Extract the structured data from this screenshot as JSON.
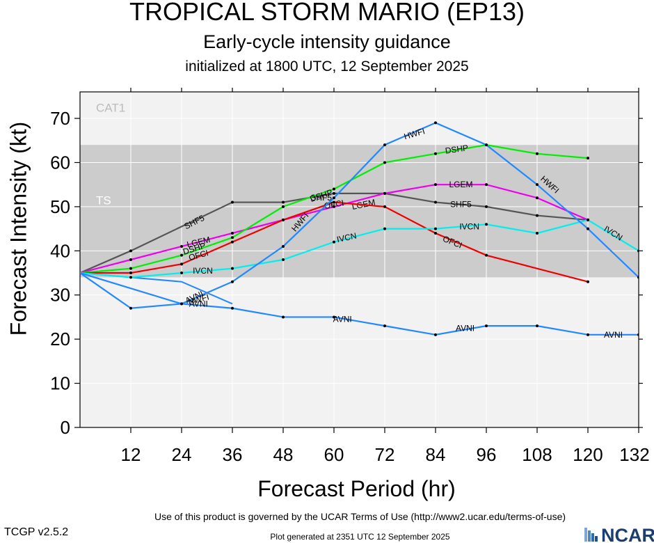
{
  "header": {
    "title": "TROPICAL STORM MARIO (EP13)",
    "subtitle": "Early-cycle intensity guidance",
    "init": "initialized at 1800 UTC, 12 September 2025"
  },
  "footer": {
    "terms": "Use of this product is governed by the UCAR Terms of Use (http://www2.ucar.edu/terms-of-use)",
    "version": "TCGP v2.5.2",
    "generated": "Plot generated at 2351 UTC   12 September 2025",
    "logo_text": "NCAR"
  },
  "chart_data": {
    "type": "line",
    "xlabel": "Forecast Period (hr)",
    "ylabel": "Forecast Intensity (kt)",
    "xlim": [
      0,
      132
    ],
    "ylim": [
      0,
      76
    ],
    "xticks": [
      12,
      24,
      36,
      48,
      60,
      72,
      84,
      96,
      108,
      120,
      132
    ],
    "yticks": [
      0,
      10,
      20,
      30,
      40,
      50,
      60,
      70
    ],
    "grid": true,
    "bands": [
      {
        "label": "TS",
        "from": 34,
        "to": 64,
        "color": "#cccccc"
      },
      {
        "label": "CAT1",
        "from": 64,
        "to": 76,
        "color": "#f2f2f2"
      }
    ],
    "below_color": "#f2f2f2",
    "series": [
      {
        "name": "SHF5",
        "color": "#555555",
        "x": [
          0,
          12,
          36,
          48,
          60,
          72,
          84,
          96,
          108,
          120
        ],
        "y": [
          35,
          40,
          51,
          51,
          53,
          53,
          51,
          50,
          48,
          47
        ],
        "labels": [
          {
            "x": 27,
            "y": 46.5,
            "angle": -27
          },
          {
            "x": 57,
            "y": 52,
            "angle": 0
          },
          {
            "x": 90,
            "y": 50.5,
            "angle": 0
          }
        ]
      },
      {
        "name": "LGEM",
        "color": "#ee00ee",
        "x": [
          0,
          12,
          24,
          36,
          48,
          60,
          72,
          84,
          96,
          108,
          120
        ],
        "y": [
          35,
          38,
          41,
          44,
          47,
          50,
          53,
          55,
          55,
          52,
          47
        ],
        "labels": [
          {
            "x": 28,
            "y": 42,
            "angle": -13
          },
          {
            "x": 67,
            "y": 50.5,
            "angle": -12
          },
          {
            "x": 90,
            "y": 55,
            "angle": 0
          }
        ]
      },
      {
        "name": "DSHP",
        "color": "#00ee00",
        "x": [
          0,
          12,
          24,
          36,
          48,
          60,
          72,
          84,
          96,
          108,
          120
        ],
        "y": [
          35,
          36,
          39,
          43,
          50,
          54,
          60,
          62,
          64,
          62,
          61
        ],
        "labels": [
          {
            "x": 27,
            "y": 40.5,
            "angle": -17
          },
          {
            "x": 57,
            "y": 52.5,
            "angle": -19
          },
          {
            "x": 89,
            "y": 63,
            "angle": -8
          }
        ]
      },
      {
        "name": "OFCI",
        "color": "#ee0000",
        "x": [
          0,
          12,
          24,
          36,
          48,
          60,
          72,
          84,
          96,
          120
        ],
        "y": [
          35,
          35,
          37,
          42,
          47,
          51,
          50,
          44,
          39,
          33
        ],
        "labels": [
          {
            "x": 28,
            "y": 39,
            "angle": -15
          },
          {
            "x": 60,
            "y": 50.5,
            "angle": -10
          },
          {
            "x": 88,
            "y": 42,
            "angle": 22
          }
        ]
      },
      {
        "name": "IVCN",
        "color": "#00eeee",
        "x": [
          0,
          12,
          24,
          36,
          48,
          60,
          72,
          84,
          96,
          108,
          120,
          132
        ],
        "y": [
          35,
          34,
          35,
          36,
          38,
          42,
          45,
          45,
          46,
          44,
          47,
          40
        ],
        "labels": [
          {
            "x": 29,
            "y": 35.5,
            "angle": 0
          },
          {
            "x": 63,
            "y": 43,
            "angle": -12
          },
          {
            "x": 92,
            "y": 45.5,
            "angle": 0
          },
          {
            "x": 126,
            "y": 44,
            "angle": 32
          }
        ]
      },
      {
        "name": "HWFI",
        "color": "#2288ff",
        "x": [
          0,
          24,
          36,
          48,
          60,
          72,
          84,
          96,
          108,
          120,
          132
        ],
        "y": [
          35,
          28,
          33,
          41,
          52,
          64,
          69,
          64,
          55,
          45,
          34
        ],
        "labels": [
          {
            "x": 28,
            "y": 29,
            "angle": -15
          },
          {
            "x": 52,
            "y": 46.5,
            "angle": -50
          },
          {
            "x": 79,
            "y": 66.5,
            "angle": -16
          },
          {
            "x": 111,
            "y": 55,
            "angle": 42
          }
        ]
      },
      {
        "name": "AVNI",
        "color": "#2288ff",
        "x": [
          0,
          12,
          24,
          36,
          48,
          60,
          72,
          84,
          96,
          108,
          120,
          132
        ],
        "y": [
          35,
          27,
          28,
          27,
          25,
          25,
          23,
          21,
          23,
          23,
          21,
          21
        ],
        "labels": [
          {
            "x": 27,
            "y": 29.5,
            "angle": -25
          },
          {
            "x": 28,
            "y": 28,
            "angle": 0
          },
          {
            "x": 62,
            "y": 24.5,
            "angle": 0
          },
          {
            "x": 91,
            "y": 22.5,
            "angle": 0
          },
          {
            "x": 126,
            "y": 21,
            "angle": 0
          }
        ]
      }
    ],
    "extra_lines": [
      {
        "series": "AVNI",
        "color": "#2288ff",
        "x": [
          0,
          24,
          36
        ],
        "y": [
          35,
          33,
          28
        ]
      }
    ]
  }
}
